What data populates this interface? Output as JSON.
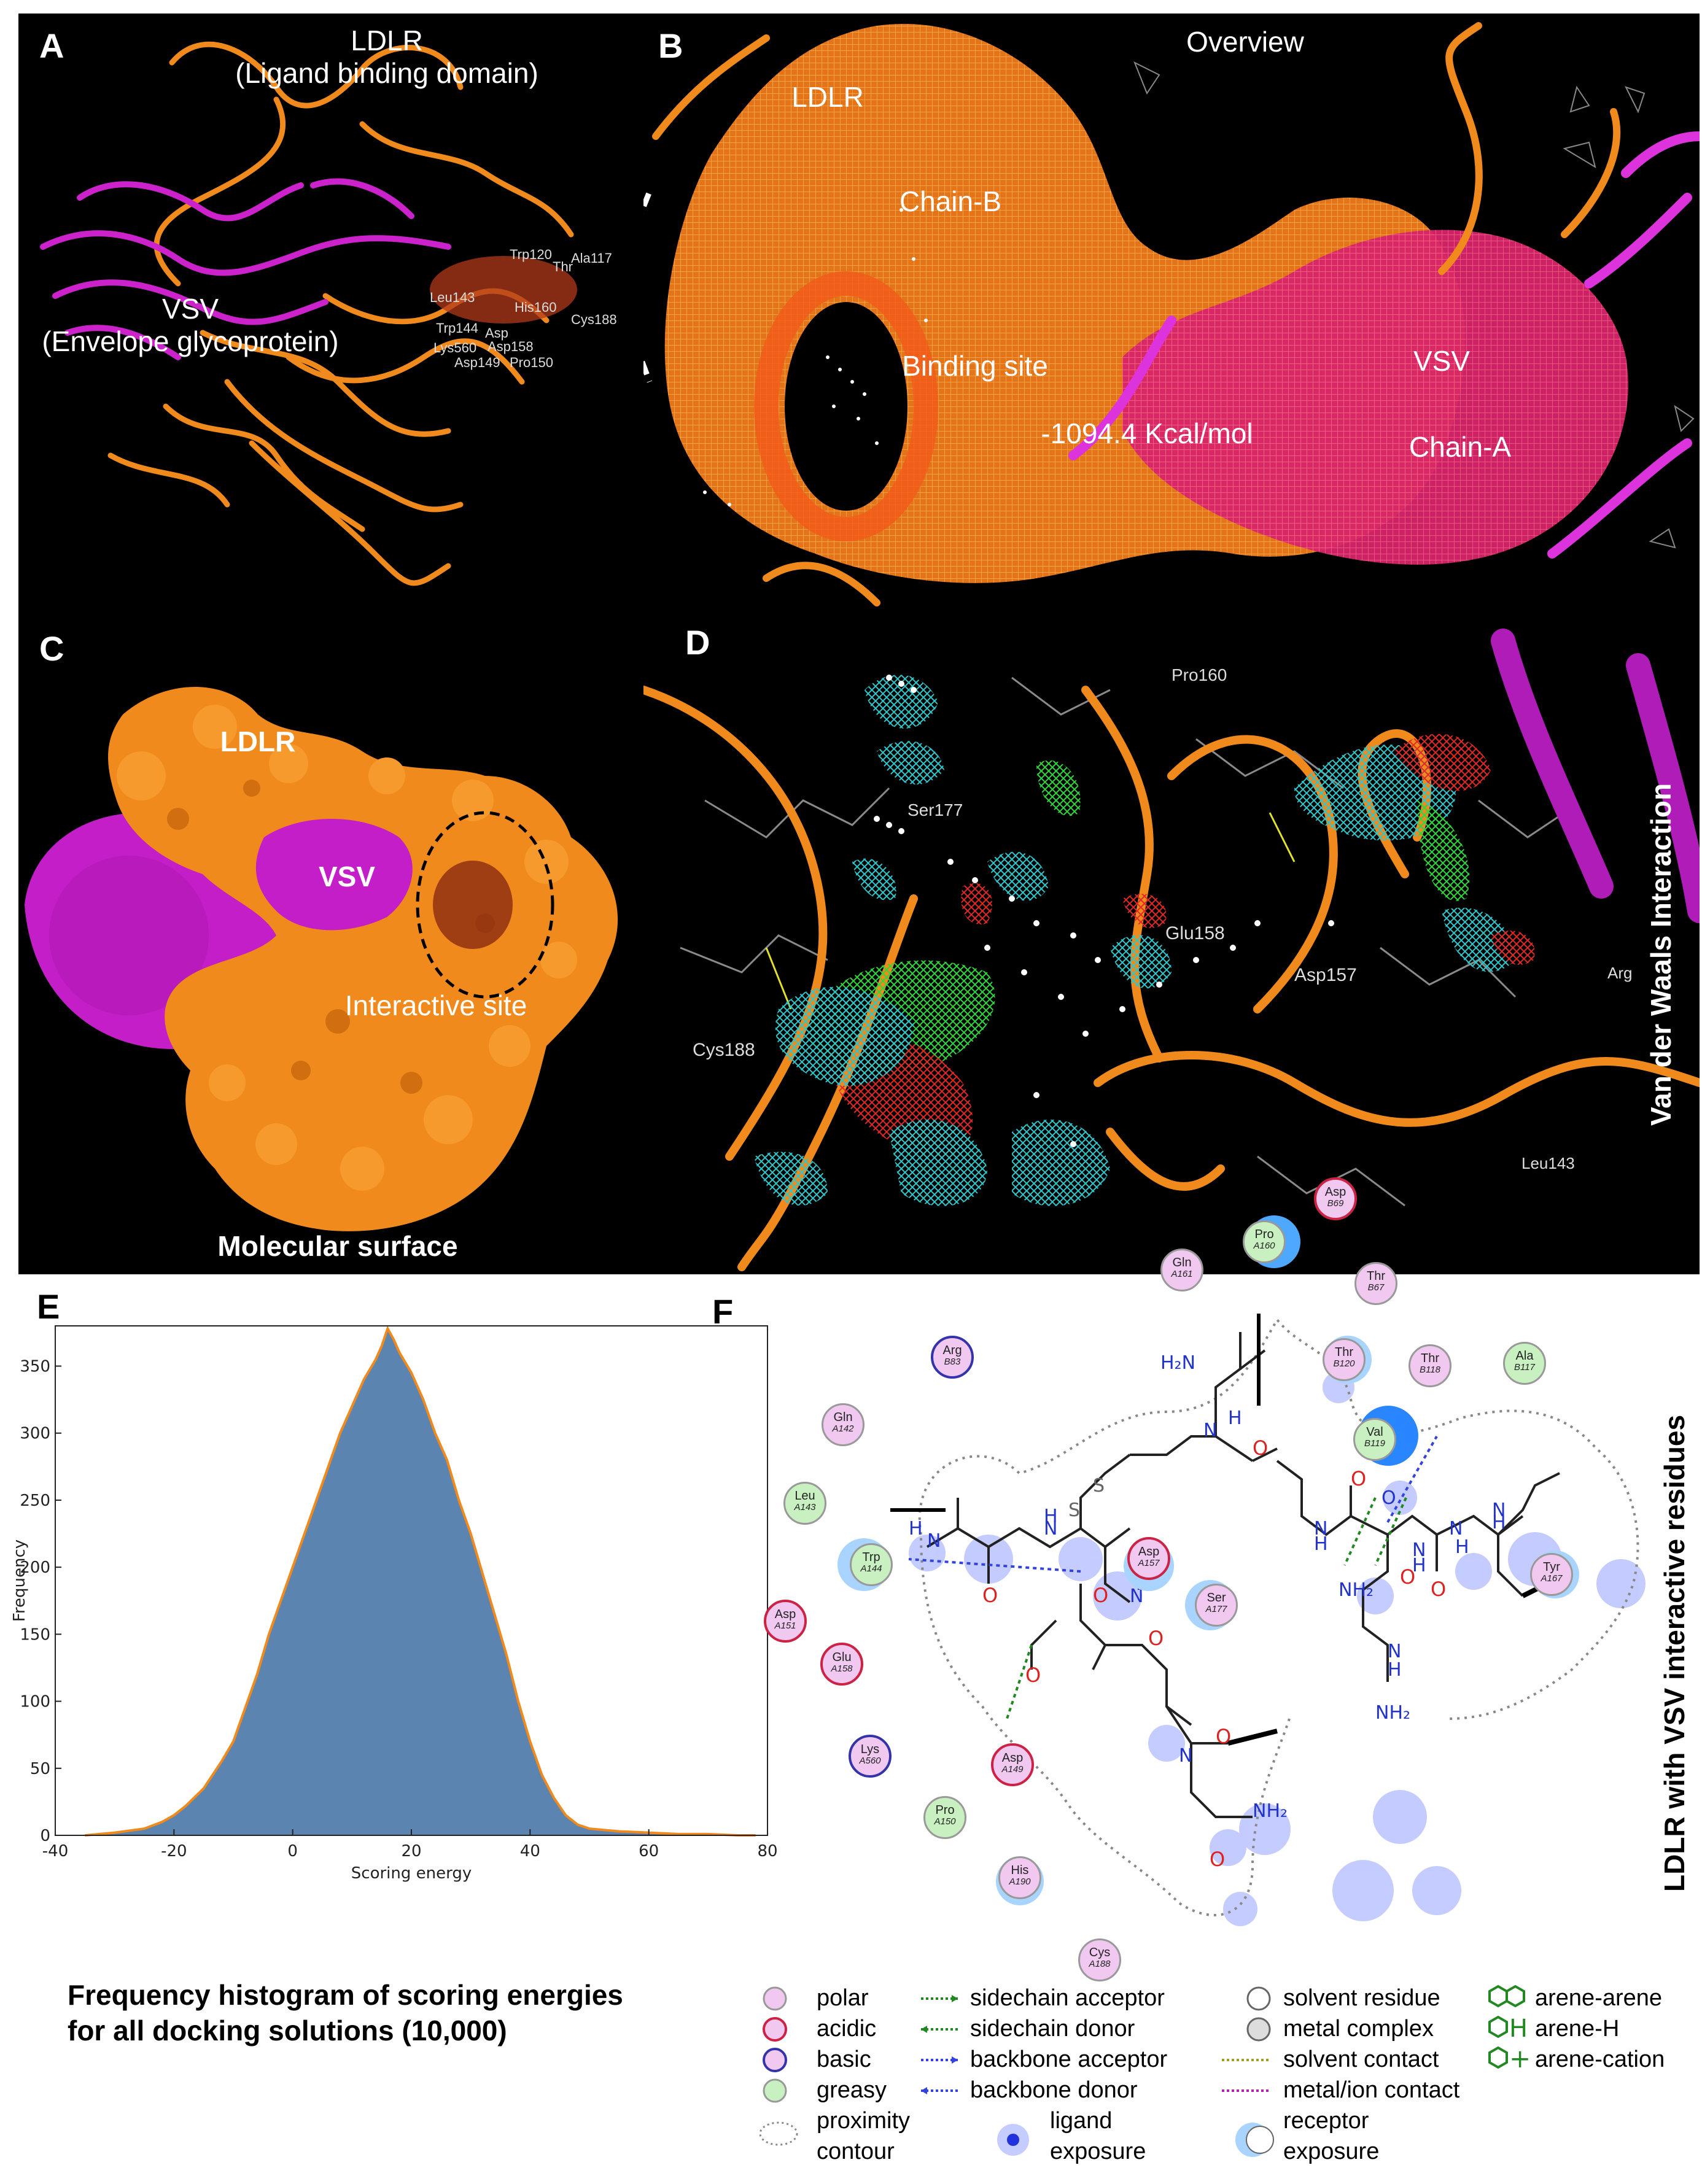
{
  "panels": {
    "A": {
      "label": "A",
      "title_line1": "LDLR",
      "title_line2": "(Ligand binding domain)",
      "vsv_line1": "VSV",
      "vsv_line2": "(Envelope glycoprotein)",
      "residue_labels": [
        "Trp120",
        "Thr",
        "Ala117",
        "Leu143",
        "His160",
        "Cys188",
        "Trp144",
        "Asp",
        "Lys560",
        "Asp158",
        "Asp149",
        "Pro150"
      ]
    },
    "B": {
      "label": "B",
      "overview": "Overview",
      "ldlr": "LDLR",
      "chain_b": "Chain-B",
      "binding_site": "Binding site",
      "energy": "-1094.4 Kcal/mol",
      "vsv": "VSV",
      "chain_a": "Chain-A"
    },
    "C": {
      "label": "C",
      "ldlr": "LDLR",
      "vsv": "VSV",
      "interactive": "Interactive site",
      "footer": "Molecular surface"
    },
    "D": {
      "label": "D",
      "vertical": "Van der Waals Interaction",
      "residues": [
        "Pro160",
        "Ser177",
        "Glu158",
        "Asp157",
        "Cys188",
        "Arg",
        "Leu143"
      ]
    },
    "E": {
      "label": "E",
      "caption_line1": "Frequency histogram of scoring energies",
      "caption_line2": "for all docking solutions (10,000)"
    },
    "F": {
      "label": "F",
      "vertical": "LDLR with VSV interactive residues",
      "residues": [
        {
          "name": "Gln",
          "chain": "A161",
          "type": "polar"
        },
        {
          "name": "Pro",
          "chain": "A160",
          "type": "greasy"
        },
        {
          "name": "Asp",
          "chain": "B69",
          "type": "acidic"
        },
        {
          "name": "Thr",
          "chain": "B67",
          "type": "polar"
        },
        {
          "name": "Arg",
          "chain": "B83",
          "type": "basic"
        },
        {
          "name": "Thr",
          "chain": "B120",
          "type": "polar"
        },
        {
          "name": "Thr",
          "chain": "B118",
          "type": "polar"
        },
        {
          "name": "Ala",
          "chain": "B117",
          "type": "greasy"
        },
        {
          "name": "Gln",
          "chain": "A142",
          "type": "polar"
        },
        {
          "name": "Val",
          "chain": "B119",
          "type": "greasy"
        },
        {
          "name": "Leu",
          "chain": "A143",
          "type": "greasy"
        },
        {
          "name": "Trp",
          "chain": "A144",
          "type": "greasy"
        },
        {
          "name": "Asp",
          "chain": "A157",
          "type": "acidic"
        },
        {
          "name": "Ser",
          "chain": "A177",
          "type": "polar"
        },
        {
          "name": "Tyr",
          "chain": "A167",
          "type": "polar"
        },
        {
          "name": "Asp",
          "chain": "A151",
          "type": "acidic"
        },
        {
          "name": "Glu",
          "chain": "A158",
          "type": "acidic"
        },
        {
          "name": "Lys",
          "chain": "A560",
          "type": "basic"
        },
        {
          "name": "Asp",
          "chain": "A149",
          "type": "acidic"
        },
        {
          "name": "Pro",
          "chain": "A150",
          "type": "greasy"
        },
        {
          "name": "His",
          "chain": "A190",
          "type": "polar"
        },
        {
          "name": "Cys",
          "chain": "A188",
          "type": "polar"
        }
      ],
      "atoms": [
        "H₂N",
        "N",
        "O",
        "H",
        "S",
        "NH₂"
      ],
      "legend": {
        "polar": "polar",
        "acidic": "acidic",
        "basic": "basic",
        "greasy": "greasy",
        "proximity": "proximity",
        "contour": "contour",
        "sc_acceptor": "sidechain acceptor",
        "sc_donor": "sidechain donor",
        "bb_acceptor": "backbone acceptor",
        "bb_donor": "backbone donor",
        "ligand": "ligand",
        "exposure": "exposure",
        "solvent_residue": "solvent residue",
        "metal_complex": "metal complex",
        "solvent_contact": "solvent contact",
        "metal_contact": "metal/ion contact",
        "receptor": "receptor",
        "arene_arene": "arene-arene",
        "arene_h": "arene-H",
        "arene_cation": "arene-cation"
      }
    }
  },
  "colors": {
    "ldlr": "#f08a1c",
    "vsv": "#cc22cc",
    "hist_fill": "#5b84b1",
    "hist_line": "#f08a1c",
    "polar": "#f0c8f0",
    "acidic": "#cc2244",
    "basic": "#3333aa",
    "greasy": "#c8f0c0"
  },
  "chart_data": {
    "type": "histogram",
    "title": "",
    "xlabel": "Scoring energy",
    "ylabel": "Frequency",
    "xlim": [
      -40,
      80
    ],
    "ylim": [
      0,
      380
    ],
    "xticks": [
      -40,
      -20,
      0,
      20,
      40,
      60,
      80
    ],
    "yticks": [
      0,
      50,
      100,
      150,
      200,
      250,
      300,
      350
    ],
    "bins_x": [
      -35,
      -30,
      -25,
      -22,
      -20,
      -18,
      -15,
      -12,
      -10,
      -8,
      -6,
      -4,
      -2,
      0,
      2,
      4,
      6,
      8,
      10,
      12,
      14,
      15,
      16,
      17,
      18,
      20,
      22,
      24,
      26,
      28,
      30,
      32,
      34,
      36,
      38,
      40,
      42,
      44,
      46,
      48,
      50,
      55,
      60,
      65,
      70,
      75,
      78
    ],
    "bins_y": [
      0,
      2,
      5,
      10,
      15,
      22,
      35,
      55,
      70,
      95,
      120,
      150,
      175,
      200,
      225,
      250,
      275,
      300,
      320,
      340,
      355,
      365,
      378,
      370,
      360,
      345,
      325,
      300,
      280,
      250,
      225,
      195,
      165,
      135,
      100,
      70,
      45,
      28,
      15,
      8,
      5,
      3,
      2,
      1,
      1,
      0,
      0
    ]
  }
}
